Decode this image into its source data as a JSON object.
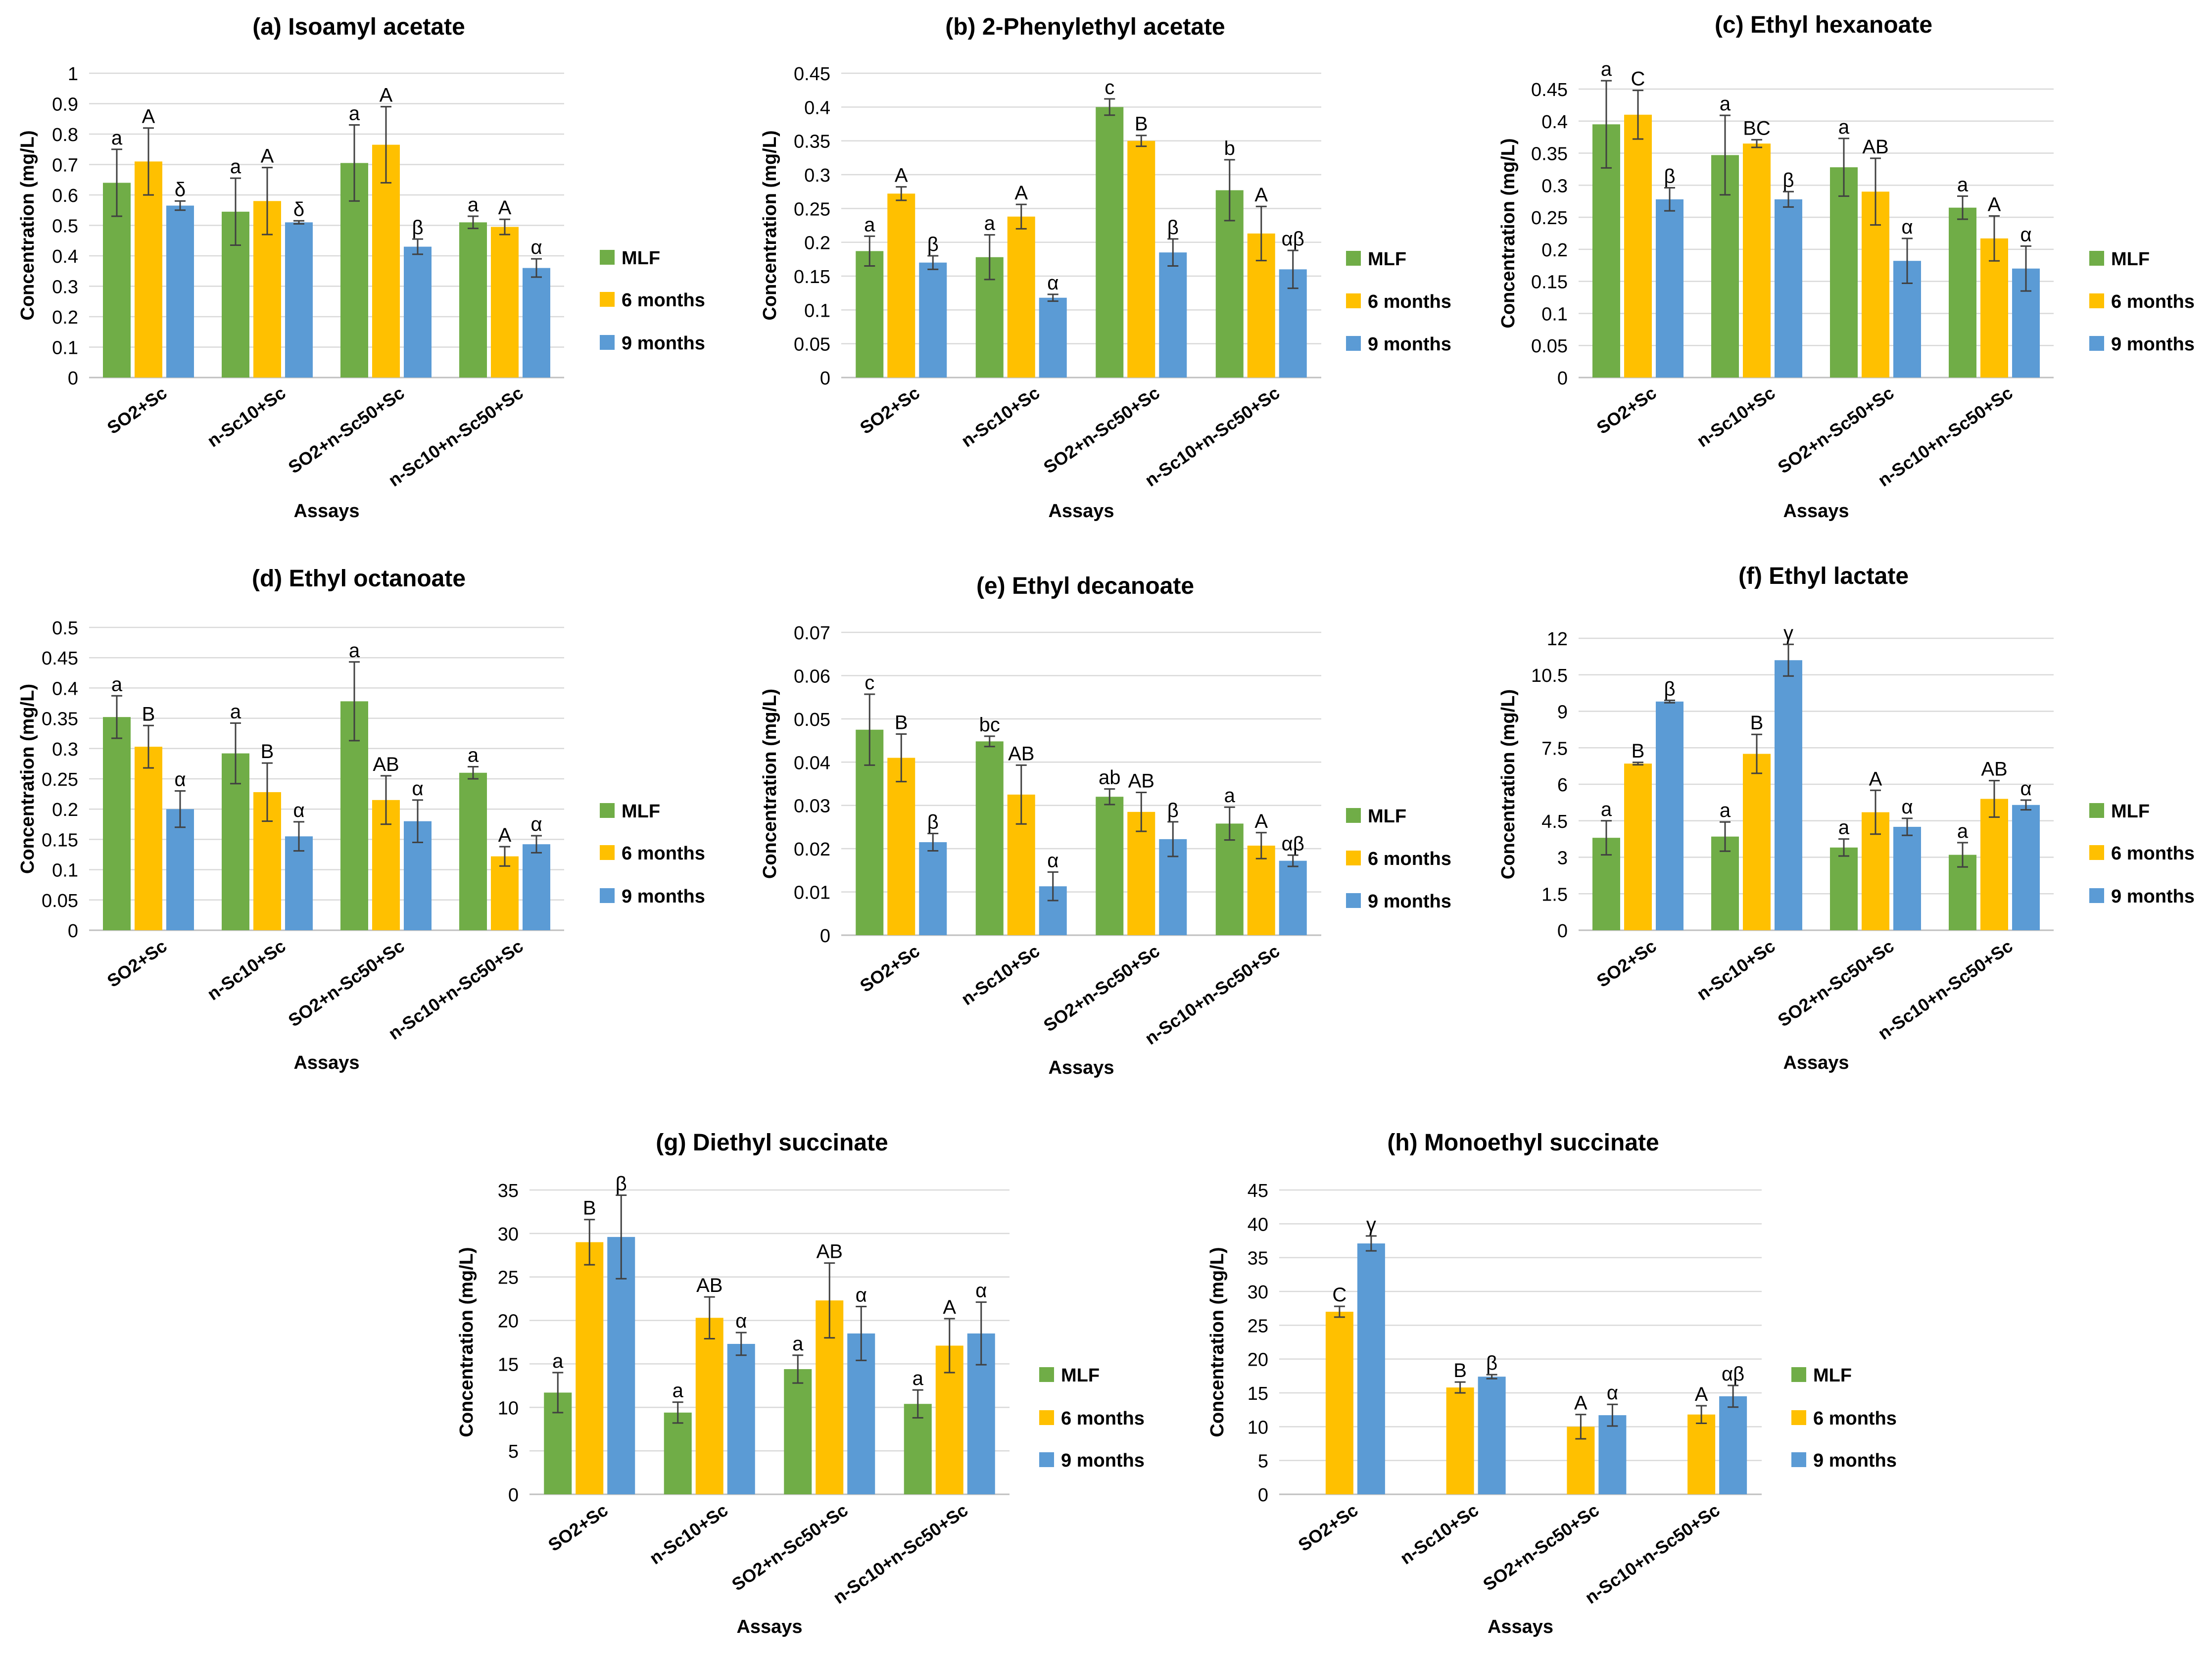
{
  "colors": {
    "MLF": "#70AD47",
    "6 months": "#FFC000",
    "9 months": "#5B9BD5",
    "grid": "#D9D9D9",
    "axis": "#BFBFBF",
    "text": "#000000",
    "error": "#404040"
  },
  "legend": [
    "MLF",
    "6 months",
    "9 months"
  ],
  "chart_data": [
    {
      "type": "bar",
      "title": "(a) Isoamyl acetate",
      "xlabel": "Assays",
      "ylabel": "Concentration (mg/L)",
      "ylim": [
        0,
        1
      ],
      "yticks": [
        "0",
        "0.1",
        "0.2",
        "0.3",
        "0.4",
        "0.5",
        "0.6",
        "0.7",
        "0.8",
        "0.9",
        "1"
      ],
      "categories": [
        "SO2+Sc",
        "n-Sc10+Sc",
        "SO2+n-Sc50+Sc",
        "n-Sc10+n-Sc50+Sc"
      ],
      "series": [
        {
          "name": "MLF",
          "values": [
            0.64,
            0.545,
            0.705,
            0.51
          ],
          "errors": [
            0.11,
            0.11,
            0.125,
            0.02
          ],
          "labels": [
            "a",
            "a",
            "a",
            "a"
          ]
        },
        {
          "name": "6 months",
          "values": [
            0.71,
            0.58,
            0.765,
            0.495
          ],
          "errors": [
            0.11,
            0.11,
            0.125,
            0.025
          ],
          "labels": [
            "A",
            "A",
            "A",
            "A"
          ]
        },
        {
          "name": "9 months",
          "values": [
            0.565,
            0.51,
            0.43,
            0.36
          ],
          "errors": [
            0.015,
            0.005,
            0.025,
            0.03
          ],
          "labels": [
            "δ",
            "δ",
            "β",
            "α"
          ]
        }
      ]
    },
    {
      "type": "bar",
      "title": "(b) 2-Phenylethyl acetate",
      "xlabel": "Assays",
      "ylabel": "Concentration (mg/L)",
      "ylim": [
        0,
        0.45
      ],
      "yticks": [
        "0",
        "0.05",
        "0.1",
        "0.15",
        "0.2",
        "0.25",
        "0.3",
        "0.35",
        "0.4",
        "0.45"
      ],
      "categories": [
        "SO2+Sc",
        "n-Sc10+Sc",
        "SO2+n-Sc50+Sc",
        "n-Sc10+n-Sc50+Sc"
      ],
      "series": [
        {
          "name": "MLF",
          "values": [
            0.187,
            0.178,
            0.4,
            0.277
          ],
          "errors": [
            0.022,
            0.033,
            0.012,
            0.045
          ],
          "labels": [
            "a",
            "a",
            "c",
            "b"
          ]
        },
        {
          "name": "6 months",
          "values": [
            0.272,
            0.238,
            0.35,
            0.213
          ],
          "errors": [
            0.01,
            0.018,
            0.008,
            0.04
          ],
          "labels": [
            "A",
            "A",
            "B",
            "A"
          ]
        },
        {
          "name": "9 months",
          "values": [
            0.17,
            0.118,
            0.185,
            0.16
          ],
          "errors": [
            0.01,
            0.005,
            0.02,
            0.028
          ],
          "labels": [
            "β",
            "α",
            "β",
            "αβ"
          ]
        }
      ]
    },
    {
      "type": "bar",
      "title": "(c) Ethyl hexanoate",
      "xlabel": "Assays",
      "ylabel": "Concentration (mg/L)",
      "ylim": [
        0,
        0.45
      ],
      "yticks": [
        "0",
        "0.05",
        "0.1",
        "0.15",
        "0.2",
        "0.25",
        "0.3",
        "0.35",
        "0.4",
        "0.45"
      ],
      "categories": [
        "SO2+Sc",
        "n-Sc10+Sc",
        "SO2+n-Sc50+Sc",
        "n-Sc10+n-Sc50+Sc"
      ],
      "series": [
        {
          "name": "MLF",
          "values": [
            0.395,
            0.347,
            0.328,
            0.265
          ],
          "errors": [
            0.068,
            0.062,
            0.045,
            0.018
          ],
          "labels": [
            "a",
            "a",
            "a",
            "a"
          ]
        },
        {
          "name": "6 months",
          "values": [
            0.41,
            0.365,
            0.29,
            0.217
          ],
          "errors": [
            0.038,
            0.006,
            0.052,
            0.035
          ],
          "labels": [
            "C",
            "BC",
            "AB",
            "A"
          ]
        },
        {
          "name": "9 months",
          "values": [
            0.278,
            0.278,
            0.182,
            0.17
          ],
          "errors": [
            0.018,
            0.012,
            0.035,
            0.035
          ],
          "labels": [
            "β",
            "β",
            "α",
            "α"
          ]
        }
      ]
    },
    {
      "type": "bar",
      "title": "(d) Ethyl octanoate",
      "xlabel": "Assays",
      "ylabel": "Concentration (mg/L)",
      "ylim": [
        0,
        0.5
      ],
      "yticks": [
        "0",
        "0.05",
        "0.1",
        "0.15",
        "0.2",
        "0.25",
        "0.3",
        "0.35",
        "0.4",
        "0.45",
        "0.5"
      ],
      "categories": [
        "SO2+Sc",
        "n-Sc10+Sc",
        "SO2+n-Sc50+Sc",
        "n-Sc10+n-Sc50+Sc"
      ],
      "series": [
        {
          "name": "MLF",
          "values": [
            0.352,
            0.292,
            0.378,
            0.26
          ],
          "errors": [
            0.035,
            0.05,
            0.065,
            0.01
          ],
          "labels": [
            "a",
            "a",
            "a",
            "a"
          ]
        },
        {
          "name": "6 months",
          "values": [
            0.303,
            0.228,
            0.215,
            0.122
          ],
          "errors": [
            0.035,
            0.048,
            0.04,
            0.016
          ],
          "labels": [
            "B",
            "B",
            "AB",
            "A"
          ]
        },
        {
          "name": "9 months",
          "values": [
            0.2,
            0.155,
            0.18,
            0.142
          ],
          "errors": [
            0.03,
            0.024,
            0.035,
            0.014
          ],
          "labels": [
            "α",
            "α",
            "α",
            "α"
          ]
        }
      ]
    },
    {
      "type": "bar",
      "title": "(e) Ethyl decanoate",
      "xlabel": "Assays",
      "ylabel": "Concentration (mg/L)",
      "ylim": [
        0,
        0.07
      ],
      "yticks": [
        "0",
        "0.01",
        "0.02",
        "0.03",
        "0.04",
        "0.05",
        "0.06",
        "0.07"
      ],
      "categories": [
        "SO2+Sc",
        "n-Sc10+Sc",
        "SO2+n-Sc50+Sc",
        "n-Sc10+n-Sc50+Sc"
      ],
      "series": [
        {
          "name": "MLF",
          "values": [
            0.0475,
            0.0448,
            0.032,
            0.0258
          ],
          "errors": [
            0.0082,
            0.0012,
            0.0018,
            0.0038
          ],
          "labels": [
            "c",
            "bc",
            "ab",
            "a"
          ]
        },
        {
          "name": "6 months",
          "values": [
            0.041,
            0.0325,
            0.0285,
            0.0207
          ],
          "errors": [
            0.0055,
            0.0068,
            0.0045,
            0.003
          ],
          "labels": [
            "B",
            "AB",
            "AB",
            "A"
          ]
        },
        {
          "name": "9 months",
          "values": [
            0.0215,
            0.0113,
            0.0222,
            0.0172
          ],
          "errors": [
            0.002,
            0.0033,
            0.004,
            0.0013
          ],
          "labels": [
            "β",
            "α",
            "β",
            "αβ"
          ]
        }
      ]
    },
    {
      "type": "bar",
      "title": "(f) Ethyl lactate",
      "xlabel": "Assays",
      "ylabel": "Concentration (mg/L)",
      "ylim": [
        0,
        12
      ],
      "yticks": [
        "0",
        "1.5",
        "3",
        "4.5",
        "6",
        "7.5",
        "9",
        "10.5",
        "12"
      ],
      "categories": [
        "SO2+Sc",
        "n-Sc10+Sc",
        "SO2+n-Sc50+Sc",
        "n-Sc10+n-Sc50+Sc"
      ],
      "series": [
        {
          "name": "MLF",
          "values": [
            3.8,
            3.85,
            3.4,
            3.1
          ],
          "errors": [
            0.7,
            0.6,
            0.35,
            0.5
          ],
          "labels": [
            "a",
            "a",
            "a",
            "a"
          ]
        },
        {
          "name": "6 months",
          "values": [
            6.85,
            7.25,
            4.85,
            5.4
          ],
          "errors": [
            0.05,
            0.8,
            0.9,
            0.75
          ],
          "labels": [
            "B",
            "B",
            "A",
            "AB"
          ]
        },
        {
          "name": "9 months",
          "values": [
            9.4,
            11.1,
            4.25,
            5.15
          ],
          "errors": [
            0.05,
            0.65,
            0.35,
            0.2
          ],
          "labels": [
            "β",
            "γ",
            "α",
            "α"
          ]
        }
      ]
    },
    {
      "type": "bar",
      "title": "(g) Diethyl succinate",
      "xlabel": "Assays",
      "ylabel": "Concentration (mg/L)",
      "ylim": [
        0,
        35
      ],
      "yticks": [
        "0",
        "5",
        "10",
        "15",
        "20",
        "25",
        "30",
        "35"
      ],
      "categories": [
        "SO2+Sc",
        "n-Sc10+Sc",
        "SO2+n-Sc50+Sc",
        "n-Sc10+n-Sc50+Sc"
      ],
      "series": [
        {
          "name": "MLF",
          "values": [
            11.7,
            9.4,
            14.4,
            10.4
          ],
          "errors": [
            2.3,
            1.2,
            1.6,
            1.6
          ],
          "labels": [
            "a",
            "a",
            "a",
            "a"
          ]
        },
        {
          "name": "6 months",
          "values": [
            29.0,
            20.3,
            22.3,
            17.1
          ],
          "errors": [
            2.6,
            2.4,
            4.3,
            3.1
          ],
          "labels": [
            "B",
            "AB",
            "AB",
            "A"
          ]
        },
        {
          "name": "9 months",
          "values": [
            29.6,
            17.3,
            18.5,
            18.5
          ],
          "errors": [
            4.8,
            1.3,
            3.1,
            3.6
          ],
          "labels": [
            "β",
            "α",
            "α",
            "α"
          ]
        }
      ]
    },
    {
      "type": "bar",
      "title": "(h) Monoethyl succinate",
      "xlabel": "Assays",
      "ylabel": "Concentration (mg/L)",
      "ylim": [
        0,
        45
      ],
      "yticks": [
        "0",
        "5",
        "10",
        "15",
        "20",
        "25",
        "30",
        "35",
        "40",
        "45"
      ],
      "categories": [
        "SO2+Sc",
        "n-Sc10+Sc",
        "SO2+n-Sc50+Sc",
        "n-Sc10+n-Sc50+Sc"
      ],
      "series": [
        {
          "name": "MLF",
          "values": [
            null,
            null,
            null,
            null
          ],
          "errors": [
            0,
            0,
            0,
            0
          ],
          "labels": [
            "",
            "",
            "",
            ""
          ]
        },
        {
          "name": "6 months",
          "values": [
            27.0,
            15.8,
            10.0,
            11.8
          ],
          "errors": [
            0.8,
            0.8,
            1.8,
            1.3
          ],
          "labels": [
            "C",
            "B",
            "A",
            "A"
          ]
        },
        {
          "name": "9 months",
          "values": [
            37.1,
            17.4,
            11.7,
            14.5
          ],
          "errors": [
            1.1,
            0.3,
            1.6,
            1.6
          ],
          "labels": [
            "γ",
            "β",
            "α",
            "αβ"
          ]
        }
      ]
    }
  ]
}
